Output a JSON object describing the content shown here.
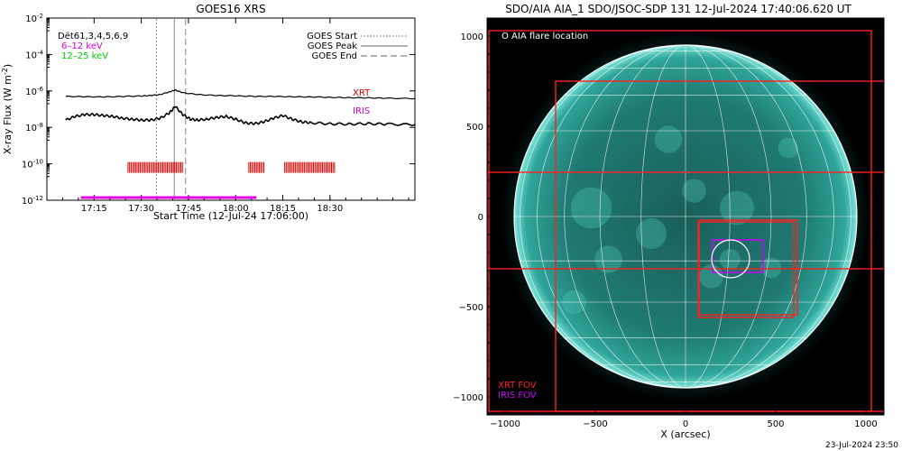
{
  "footer_timestamp": "23-Jul-2024 23:50",
  "chart_data": [
    {
      "type": "line",
      "title": "GOES16 XRS",
      "xlabel": "Start Time (12-Jul-24 17:06:00)",
      "ylabel": "X-ray Flux (W m",
      "ylabel_sup": "-2",
      "ylabel_close": ")",
      "yscale": "log",
      "ylim_log10": [
        -12,
        -2
      ],
      "y_ticks": [
        {
          "exp": -2,
          "base": "10",
          "sup": "-2"
        },
        {
          "exp": -4,
          "base": "10",
          "sup": "-4"
        },
        {
          "exp": -6,
          "base": "10",
          "sup": "-6"
        },
        {
          "exp": -8,
          "base": "10",
          "sup": "-8"
        },
        {
          "exp": -10,
          "base": "10",
          "sup": "-10"
        },
        {
          "exp": -12,
          "base": "10",
          "sup": "-12"
        }
      ],
      "xlim_minutes": [
        17.0,
        18.95
      ],
      "x_ticks": [
        {
          "label": "17:15",
          "hour": 17.25
        },
        {
          "label": "17:30",
          "hour": 17.5
        },
        {
          "label": "17:45",
          "hour": 17.75
        },
        {
          "label": "18:00",
          "hour": 18.0
        },
        {
          "label": "18:15",
          "hour": 18.25
        },
        {
          "label": "18:30",
          "hour": 18.5
        }
      ],
      "legend_left": {
        "entries": [
          {
            "text": "Dët61,3,4,5,6,9",
            "color": "#000000"
          },
          {
            "text": "6–12 keV",
            "color": "#e000e0"
          },
          {
            "text": "12–25 keV",
            "color": "#00cc00"
          }
        ]
      },
      "legend_right": {
        "entries": [
          {
            "text": "GOES Start",
            "style": "dotted"
          },
          {
            "text": "GOES Peak",
            "style": "solid"
          },
          {
            "text": "GOES End",
            "style": "dashed"
          }
        ]
      },
      "instrument_labels": [
        {
          "text": "XRT",
          "color": "#dd0000"
        },
        {
          "text": "IRIS",
          "color": "#cc00cc"
        }
      ],
      "event_lines": {
        "goes_start_hour": 17.58,
        "goes_peak_hour": 17.675,
        "goes_end_hour": 17.735
      },
      "series": [
        {
          "name": "long-channel",
          "color": "#000000",
          "x_hour": [
            17.1,
            17.2,
            17.3,
            17.4,
            17.5,
            17.55,
            17.6,
            17.65,
            17.68,
            17.72,
            17.8,
            17.9,
            18.0,
            18.1,
            18.2,
            18.3,
            18.4,
            18.5,
            18.6,
            18.7,
            18.8,
            18.95
          ],
          "y_log10": [
            -6.3,
            -6.32,
            -6.33,
            -6.3,
            -6.28,
            -6.25,
            -6.2,
            -6.05,
            -5.95,
            -6.1,
            -6.2,
            -6.25,
            -6.27,
            -6.3,
            -6.3,
            -6.32,
            -6.33,
            -6.35,
            -6.37,
            -6.38,
            -6.4,
            -6.42
          ]
        },
        {
          "name": "short-channel",
          "color": "#000000",
          "x_hour": [
            17.1,
            17.15,
            17.2,
            17.25,
            17.3,
            17.35,
            17.4,
            17.45,
            17.5,
            17.55,
            17.6,
            17.65,
            17.68,
            17.72,
            17.76,
            17.8,
            17.85,
            17.9,
            17.95,
            18.0,
            18.05,
            18.1,
            18.15,
            18.2,
            18.25,
            18.3,
            18.35,
            18.4,
            18.5,
            18.6,
            18.7,
            18.8,
            18.95
          ],
          "y_log10": [
            -7.6,
            -7.4,
            -7.3,
            -7.3,
            -7.35,
            -7.4,
            -7.5,
            -7.55,
            -7.6,
            -7.6,
            -7.5,
            -7.2,
            -6.85,
            -7.3,
            -7.55,
            -7.6,
            -7.55,
            -7.45,
            -7.4,
            -7.55,
            -7.75,
            -7.8,
            -7.7,
            -7.5,
            -7.35,
            -7.55,
            -7.7,
            -7.75,
            -7.8,
            -7.82,
            -7.8,
            -7.82,
            -7.85
          ]
        }
      ],
      "xrt_observations": [
        {
          "start_hour": 17.43,
          "end_hour": 17.72
        },
        {
          "start_hour": 18.07,
          "end_hour": 18.15
        },
        {
          "start_hour": 18.26,
          "end_hour": 18.53
        }
      ],
      "xrt_row_log10": -10.2,
      "iris_observation": {
        "start_hour": 17.18,
        "end_hour": 18.11
      },
      "iris_row_log10": -11.85
    },
    {
      "type": "image",
      "title": "SDO/AIA AIA_1 SDO/JSOC-SDP 131 12-Jul-2024 17:40:06.620 UT",
      "xlabel": "X (arcsec)",
      "xlim": [
        -1100,
        1100
      ],
      "ylim": [
        -1100,
        1100
      ],
      "x_ticks": [
        {
          "value": -1000,
          "label": "−1000"
        },
        {
          "value": -500,
          "label": "−500"
        },
        {
          "value": 0,
          "label": "0"
        },
        {
          "value": 500,
          "label": "500"
        },
        {
          "value": 1000,
          "label": "1000"
        }
      ],
      "y_ticks": [
        {
          "value": 1000,
          "label": "1000"
        },
        {
          "value": 500,
          "label": "500"
        },
        {
          "value": 0,
          "label": "0"
        },
        {
          "value": -500,
          "label": "−500"
        },
        {
          "value": -1000,
          "label": "−1000"
        }
      ],
      "solar_radius_arcsec": 950,
      "disk_color": "#1e8f86",
      "flare_location": {
        "x": 250,
        "y": -235,
        "radius": 105
      },
      "flare_legend": "O AIA flare location",
      "fov_legend": [
        {
          "text": "XRT FOV",
          "color": "#ff2020"
        },
        {
          "text": "IRIS FOV",
          "color": "#cc00ff"
        }
      ],
      "xrt_fovs": [
        {
          "x0": -1090,
          "x1": 1030,
          "y0": -1080,
          "y1": 1030
        },
        {
          "x0": -720,
          "x1": 1110,
          "y0": -1080,
          "y1": 750
        },
        {
          "x0": -1100,
          "x1": 1100,
          "y0": -290,
          "y1": 245
        },
        {
          "x0": 70,
          "x1": 600,
          "y0": -560,
          "y1": -30
        },
        {
          "x0": 75,
          "x1": 620,
          "y0": -545,
          "y1": -20
        }
      ],
      "iris_fov": {
        "x0": 150,
        "x1": 430,
        "y0": -310,
        "y1": -130
      }
    }
  ]
}
